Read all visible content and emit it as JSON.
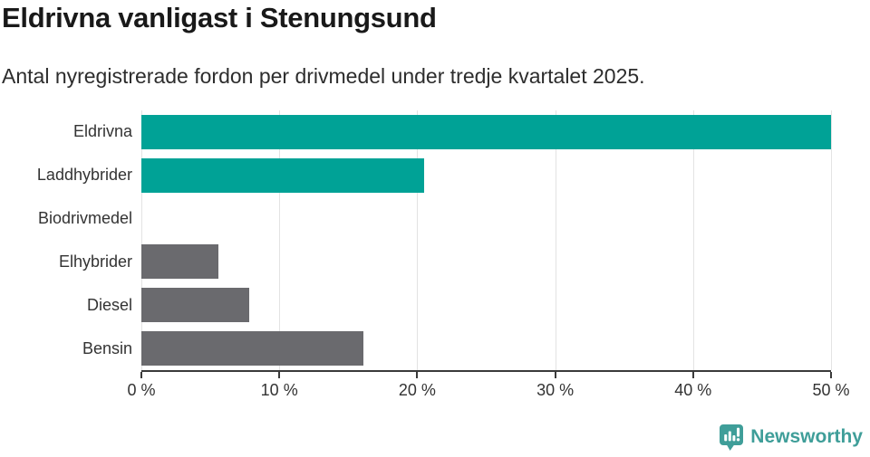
{
  "header": {
    "title": "Eldrivna vanligast i Stenungsund",
    "subtitle": "Antal nyregistrerade fordon per drivmedel under tredje kvartalet 2025."
  },
  "chart_data": {
    "type": "bar",
    "orientation": "horizontal",
    "title": "Eldrivna vanligast i Stenungsund",
    "subtitle": "Antal nyregistrerade fordon per drivmedel under tredje kvartalet 2025.",
    "categories": [
      "Eldrivna",
      "Laddhybrider",
      "Biodrivmedel",
      "Elhybrider",
      "Diesel",
      "Bensin"
    ],
    "values": [
      50.1,
      20.5,
      0,
      5.6,
      7.8,
      16.1
    ],
    "unit": "%",
    "xlim": [
      0,
      50
    ],
    "xticks": [
      {
        "value": 0,
        "label": "0 %"
      },
      {
        "value": 10,
        "label": "10 %"
      },
      {
        "value": 20,
        "label": "20 %"
      },
      {
        "value": 30,
        "label": "30 %"
      },
      {
        "value": 40,
        "label": "40 %"
      },
      {
        "value": 50,
        "label": "50 %"
      }
    ],
    "grid": true,
    "legend": "none",
    "bar_colors": [
      "#00a296",
      "#00a296",
      "#6a6a6e",
      "#6a6a6e",
      "#6a6a6e",
      "#6a6a6e"
    ]
  },
  "colors": {
    "highlight": "#00a296",
    "default_bar": "#6a6a6e",
    "axis": "#3a3a3a",
    "gridline": "#e3e3e3",
    "title_text": "#191919",
    "body_text": "#2d2d2d",
    "axis_text": "#333333",
    "logo": "#3f9e99"
  },
  "footer": {
    "brand": "Newsworthy",
    "logo_icon": "bar-chart-speech-bubble-icon"
  }
}
